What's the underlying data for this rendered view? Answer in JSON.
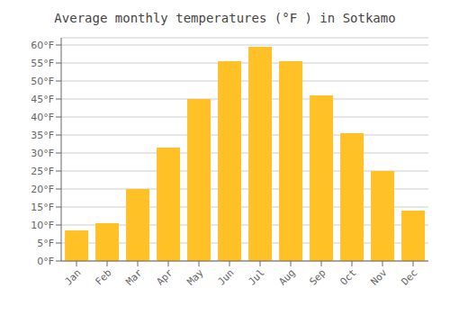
{
  "chart_data": {
    "type": "bar",
    "title": "Average monthly temperatures (°F ) in Sotkamo",
    "categories": [
      "Jan",
      "Feb",
      "Mar",
      "Apr",
      "May",
      "Jun",
      "Jul",
      "Aug",
      "Sep",
      "Oct",
      "Nov",
      "Dec"
    ],
    "values": [
      8.5,
      10.5,
      20,
      31.5,
      45,
      55.5,
      59.5,
      55.5,
      46,
      35.5,
      25,
      14
    ],
    "color": "#FFC125",
    "ylim": [
      0,
      62
    ],
    "yticks": [
      {
        "value": 0,
        "label": "0°F"
      },
      {
        "value": 5,
        "label": "5°F"
      },
      {
        "value": 10,
        "label": "10°F"
      },
      {
        "value": 15,
        "label": "15°F"
      },
      {
        "value": 20,
        "label": "20°F"
      },
      {
        "value": 25,
        "label": "25°F"
      },
      {
        "value": 30,
        "label": "30°F"
      },
      {
        "value": 35,
        "label": "35°F"
      },
      {
        "value": 40,
        "label": "40°F"
      },
      {
        "value": 45,
        "label": "45°F"
      },
      {
        "value": 50,
        "label": "50°F"
      },
      {
        "value": 55,
        "label": "55°F"
      },
      {
        "value": 60,
        "label": "60°F"
      }
    ],
    "grid": true
  }
}
